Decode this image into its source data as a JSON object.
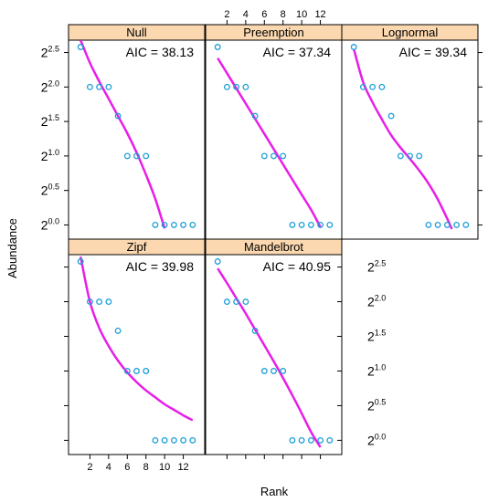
{
  "chart_data": {
    "type": "scatter",
    "xlabel": "Rank",
    "ylabel": "Abundance",
    "xlim": [
      0,
      14
    ],
    "ylim": [
      -0.1,
      2.6
    ],
    "x_ticks": [
      2,
      4,
      6,
      8,
      10,
      12
    ],
    "y_ticks": [
      {
        "value": 0.0,
        "exp": "0.0"
      },
      {
        "value": 0.5,
        "exp": "0.5"
      },
      {
        "value": 1.0,
        "exp": "1.0"
      },
      {
        "value": 1.5,
        "exp": "1.5"
      },
      {
        "value": 2.0,
        "exp": "2.0"
      },
      {
        "value": 2.5,
        "exp": "2.5"
      }
    ],
    "y_tick_base": "2",
    "colors": {
      "points": "#1f9fd6",
      "curve": "#e81ee8",
      "strip": "#fbd8b0"
    },
    "observed": {
      "rank": [
        1,
        2,
        3,
        4,
        5,
        6,
        7,
        8,
        9,
        10,
        11,
        12,
        13
      ],
      "log2_abundance": [
        2.58,
        2.0,
        2.0,
        2.0,
        1.58,
        1.0,
        1.0,
        1.0,
        0.0,
        0.0,
        0.0,
        0.0,
        0.0
      ]
    },
    "panels": [
      {
        "name": "Null",
        "aic": "AIC = 38.13",
        "fitted": {
          "x": [
            1,
            2,
            3,
            4,
            5,
            6,
            7,
            8,
            9,
            10
          ],
          "y": [
            2.68,
            2.35,
            2.08,
            1.83,
            1.58,
            1.33,
            1.05,
            0.73,
            0.38,
            -0.05
          ]
        }
      },
      {
        "name": "Preemption",
        "aic": "AIC = 37.34",
        "fitted": {
          "x": [
            1,
            2,
            3,
            4,
            5,
            6,
            7,
            8,
            9,
            10,
            11,
            12
          ],
          "y": [
            2.42,
            2.2,
            1.98,
            1.76,
            1.54,
            1.32,
            1.1,
            0.88,
            0.66,
            0.44,
            0.22,
            -0.03
          ]
        }
      },
      {
        "name": "Lognormal",
        "aic": "AIC = 39.34",
        "fitted": {
          "x": [
            1,
            2,
            3,
            4,
            5,
            6,
            7,
            8,
            9,
            10,
            11,
            11.5
          ],
          "y": [
            2.55,
            2.07,
            1.78,
            1.53,
            1.3,
            1.12,
            0.96,
            0.79,
            0.6,
            0.37,
            0.09,
            -0.06
          ]
        }
      },
      {
        "name": "Zipf",
        "aic": "AIC = 39.98",
        "fitted": {
          "x": [
            1,
            2,
            3,
            4,
            5,
            6,
            7,
            8,
            9,
            10,
            11,
            12,
            13
          ],
          "y": [
            2.65,
            2.0,
            1.62,
            1.36,
            1.15,
            0.98,
            0.84,
            0.72,
            0.62,
            0.52,
            0.44,
            0.36,
            0.29
          ]
        }
      },
      {
        "name": "Mandelbrot",
        "aic": "AIC = 40.95",
        "fitted": {
          "x": [
            1,
            2,
            3,
            4,
            5,
            6,
            7,
            8,
            9,
            10,
            11,
            12
          ],
          "y": [
            2.48,
            2.27,
            2.05,
            1.83,
            1.6,
            1.37,
            1.14,
            0.9,
            0.65,
            0.39,
            0.12,
            -0.1
          ]
        }
      }
    ]
  }
}
